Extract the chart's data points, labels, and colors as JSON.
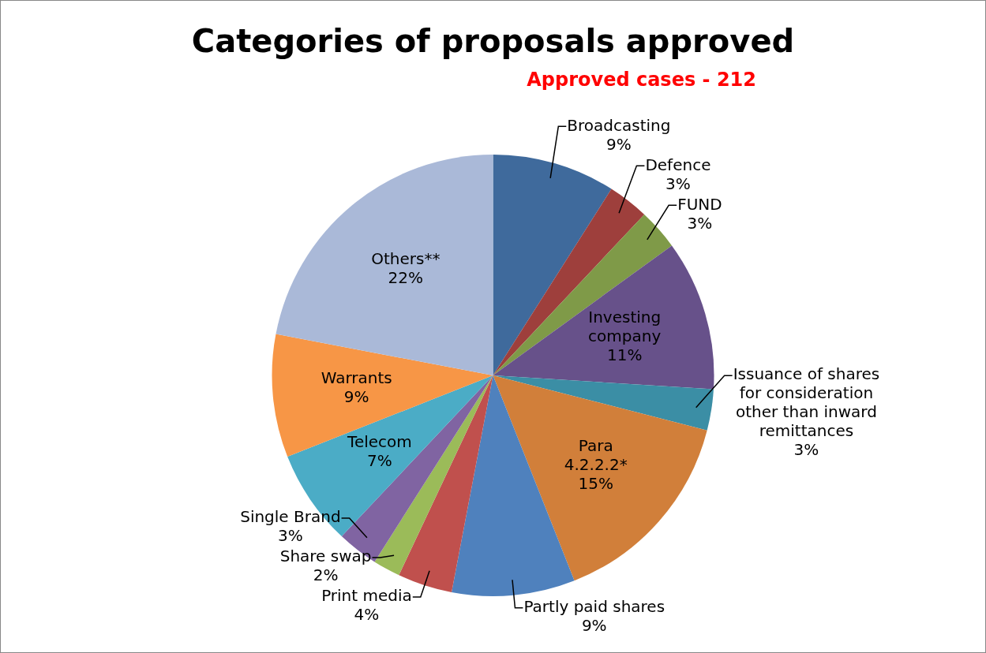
{
  "chart_data": {
    "type": "pie",
    "title": "Categories of proposals approved",
    "subtitle": "Approved cases - 212",
    "categories": [
      "Broadcasting",
      "Defence",
      "FUND",
      "Investing company",
      "Issuance of shares for consideration other than inward remittances",
      "Para 4.2.2.2*",
      "Partly paid shares",
      "Print media",
      "Share swap",
      "Single Brand",
      "Telecom",
      "Warrants",
      "Others**"
    ],
    "values": [
      9,
      3,
      3,
      11,
      3,
      15,
      9,
      4,
      2,
      3,
      7,
      9,
      22
    ],
    "colors": [
      "#3f6a9c",
      "#9e3f3c",
      "#7f9a48",
      "#67518a",
      "#3b8ea5",
      "#d17f3a",
      "#4f81bd",
      "#c0504d",
      "#9bbb59",
      "#8064a2",
      "#4bacc6",
      "#f79646",
      "#aab9d8"
    ],
    "value_labels": [
      "9%",
      "3%",
      "3%",
      "11%",
      "3%",
      "15%",
      "9%",
      "4%",
      "2%",
      "3%",
      "7%",
      "9%",
      "22%"
    ],
    "legend": false
  }
}
